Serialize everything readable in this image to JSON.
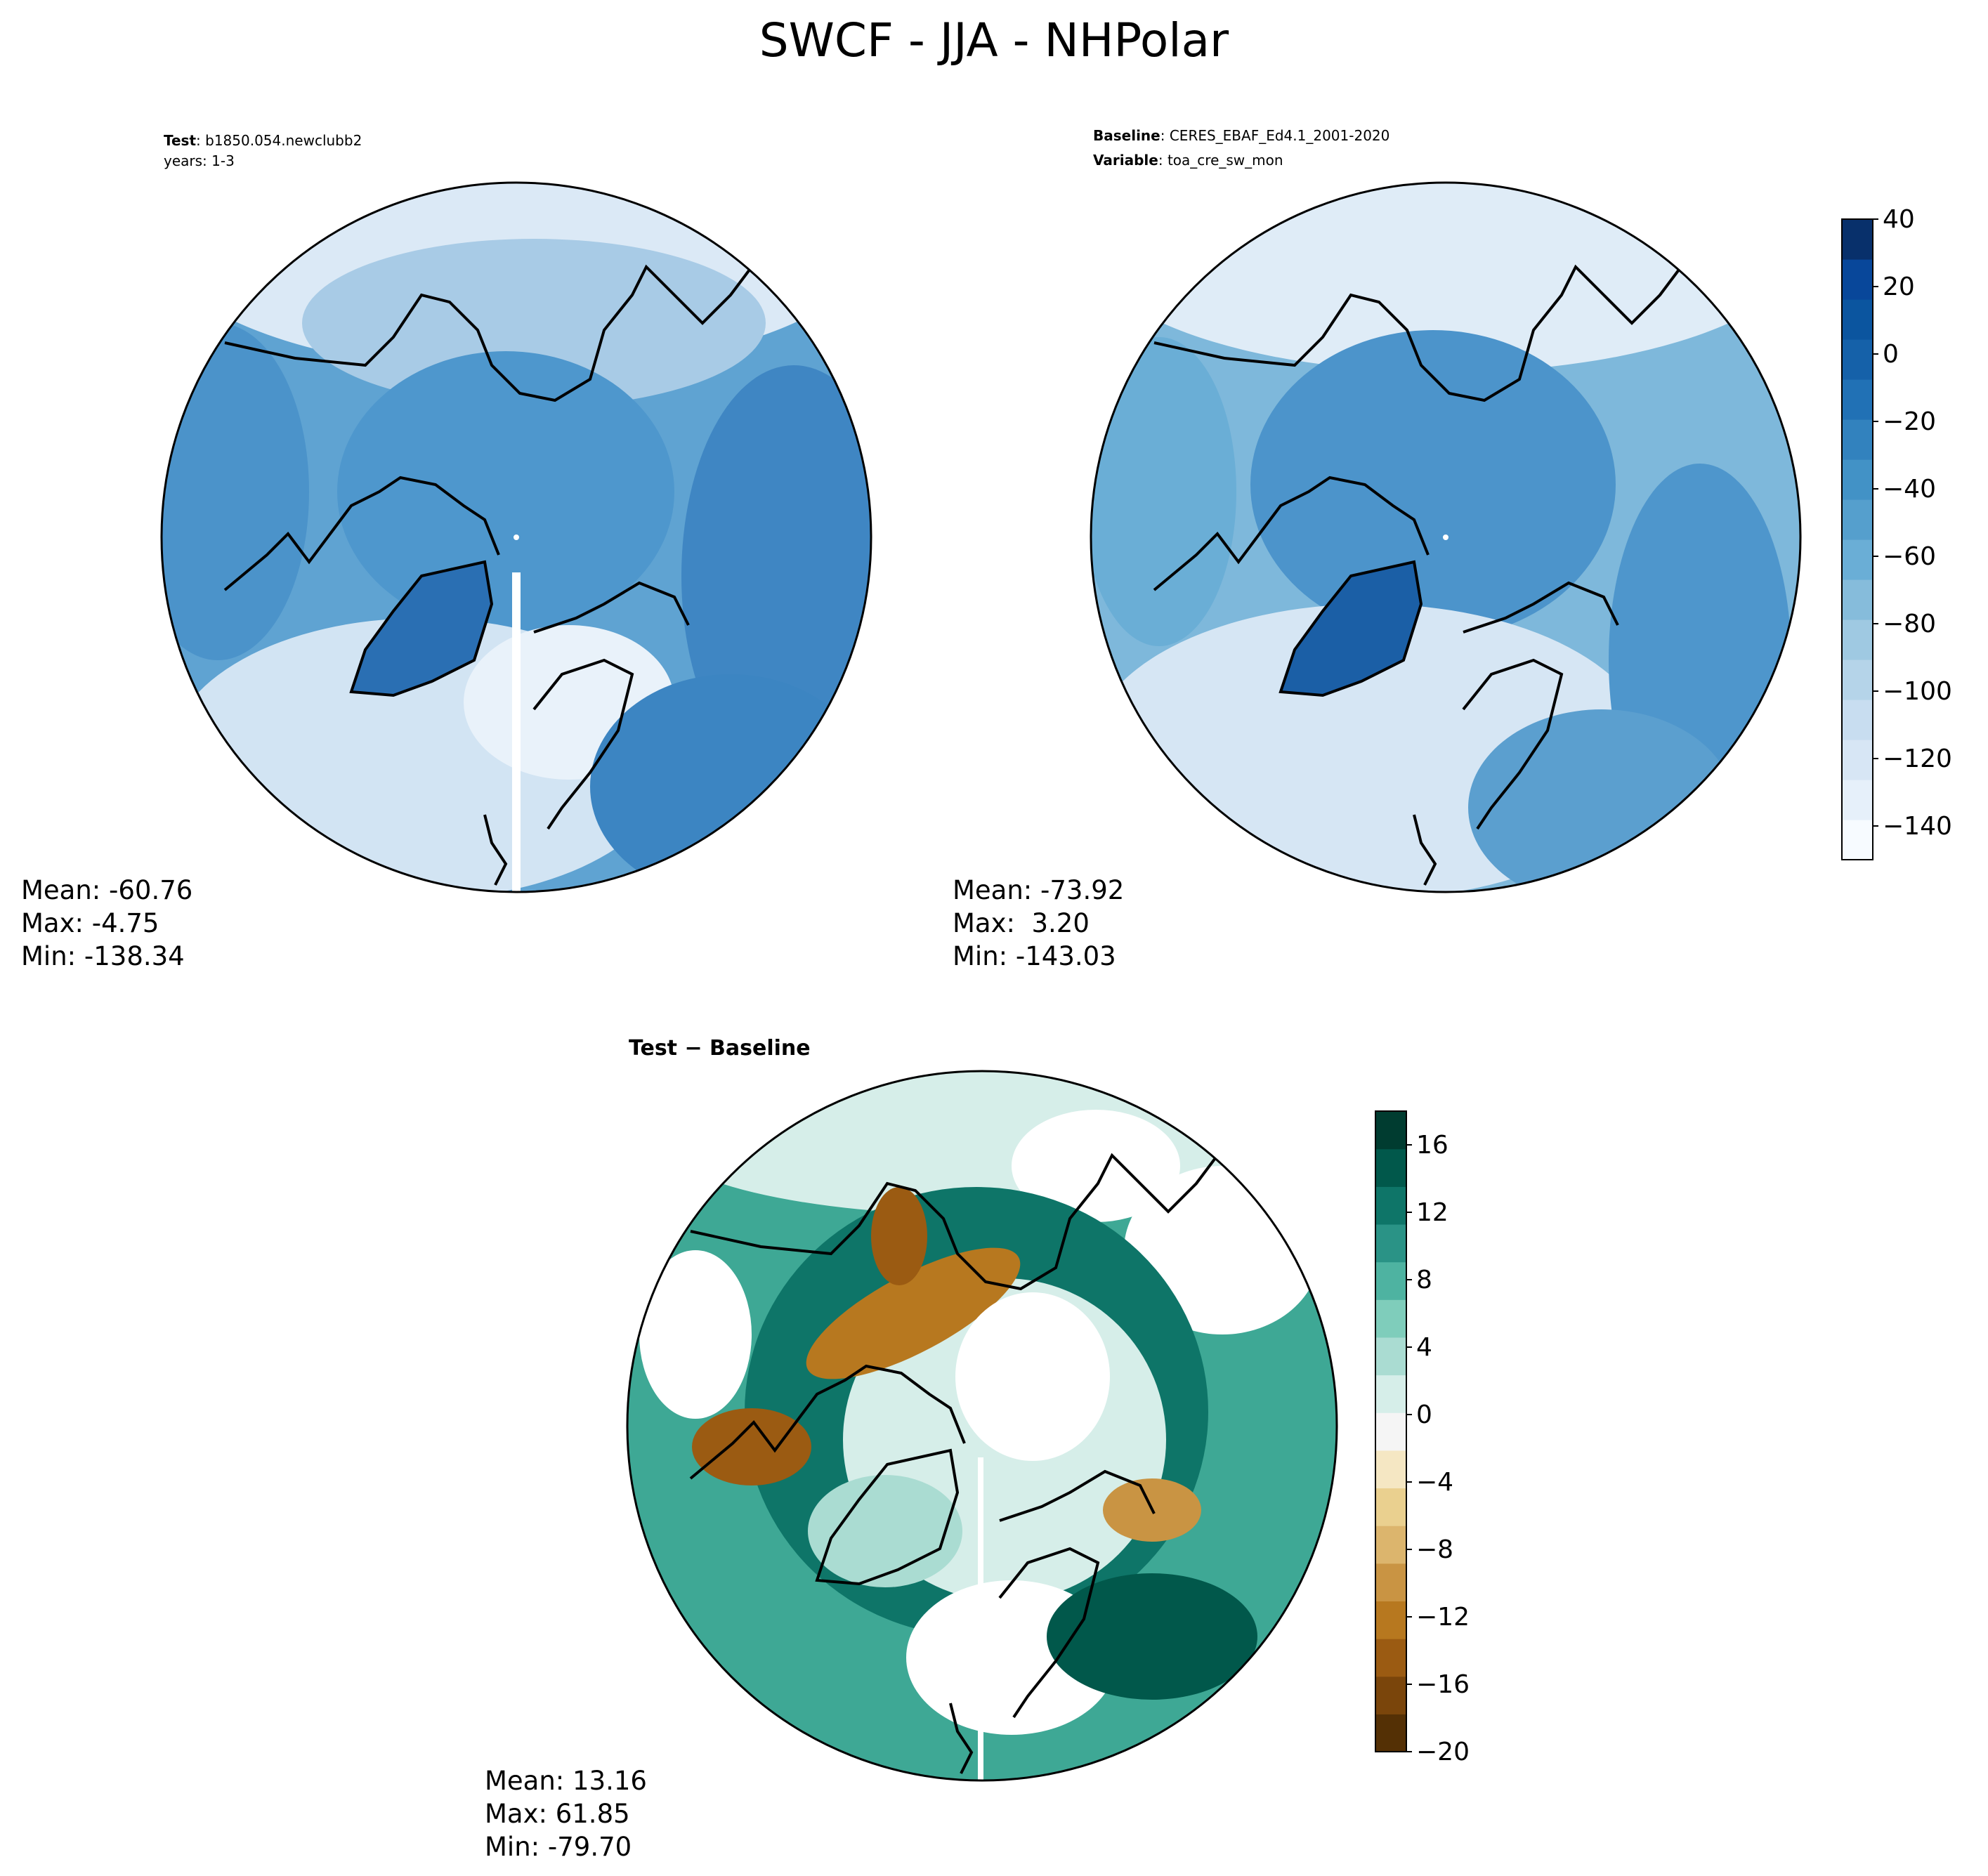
{
  "figure": {
    "title": "SWCF - JJA - NHPolar"
  },
  "chart_data": [
    {
      "type": "heatmap",
      "projection": "north-polar-stereographic",
      "header": [
        {
          "key": "Test",
          "value": "b1850.054.newclubb2"
        },
        {
          "key": "",
          "value": "years: 1-3"
        }
      ],
      "stats": {
        "mean": "Mean: -60.76",
        "max": "Max: -4.75",
        "min": "Min: -138.34"
      },
      "colorbar_ref": "blues"
    },
    {
      "type": "heatmap",
      "projection": "north-polar-stereographic",
      "header": [
        {
          "key": "Baseline",
          "value": "CERES_EBAF_Ed4.1_2001-2020"
        },
        {
          "key": "Variable",
          "value": "toa_cre_sw_mon"
        }
      ],
      "stats": {
        "mean": "Mean: -73.92",
        "max": "Max:  3.20",
        "min": "Min: -143.03"
      },
      "colorbar": {
        "id": "blues",
        "range": [
          -150,
          40
        ],
        "ticks": [
          40,
          20,
          0,
          -20,
          -40,
          -60,
          -80,
          -100,
          -120,
          -140
        ],
        "tick_labels": [
          "40",
          "20",
          "0",
          "−20",
          "−40",
          "−60",
          "−80",
          "−100",
          "−120",
          "−140"
        ],
        "colors": [
          "#f7fbff",
          "#e6f0fa",
          "#d7e6f5",
          "#c8ddf0",
          "#b5d4e9",
          "#9fc9e2",
          "#86bcdb",
          "#6aaed6",
          "#559fcd",
          "#4292c6",
          "#3282be",
          "#2171b5",
          "#1561a9",
          "#0b559f",
          "#08479a",
          "#08306b"
        ]
      }
    },
    {
      "type": "heatmap",
      "projection": "north-polar-stereographic",
      "header": [
        {
          "key": "Test − Baseline",
          "value": ""
        }
      ],
      "stats": {
        "mean": "Mean: 13.16",
        "max": "Max: 61.85",
        "min": "Min: -79.70"
      },
      "colorbar": {
        "id": "brbg",
        "range": [
          -20,
          18
        ],
        "ticks": [
          16,
          12,
          8,
          4,
          0,
          -4,
          -8,
          -12,
          -16,
          -20
        ],
        "tick_labels": [
          "16",
          "12",
          "8",
          "4",
          "0",
          "−4",
          "−8",
          "−12",
          "−16",
          "−20"
        ],
        "colors": [
          "#543005",
          "#7a450b",
          "#9b5b12",
          "#b7781f",
          "#c99443",
          "#dcb56d",
          "#ead08f",
          "#f5e7c3",
          "#f5f5f5",
          "#d6eee9",
          "#aadcd2",
          "#7fcdbb",
          "#4eb3a1",
          "#2a9386",
          "#0e7568",
          "#01584b",
          "#003c30"
        ]
      }
    }
  ]
}
